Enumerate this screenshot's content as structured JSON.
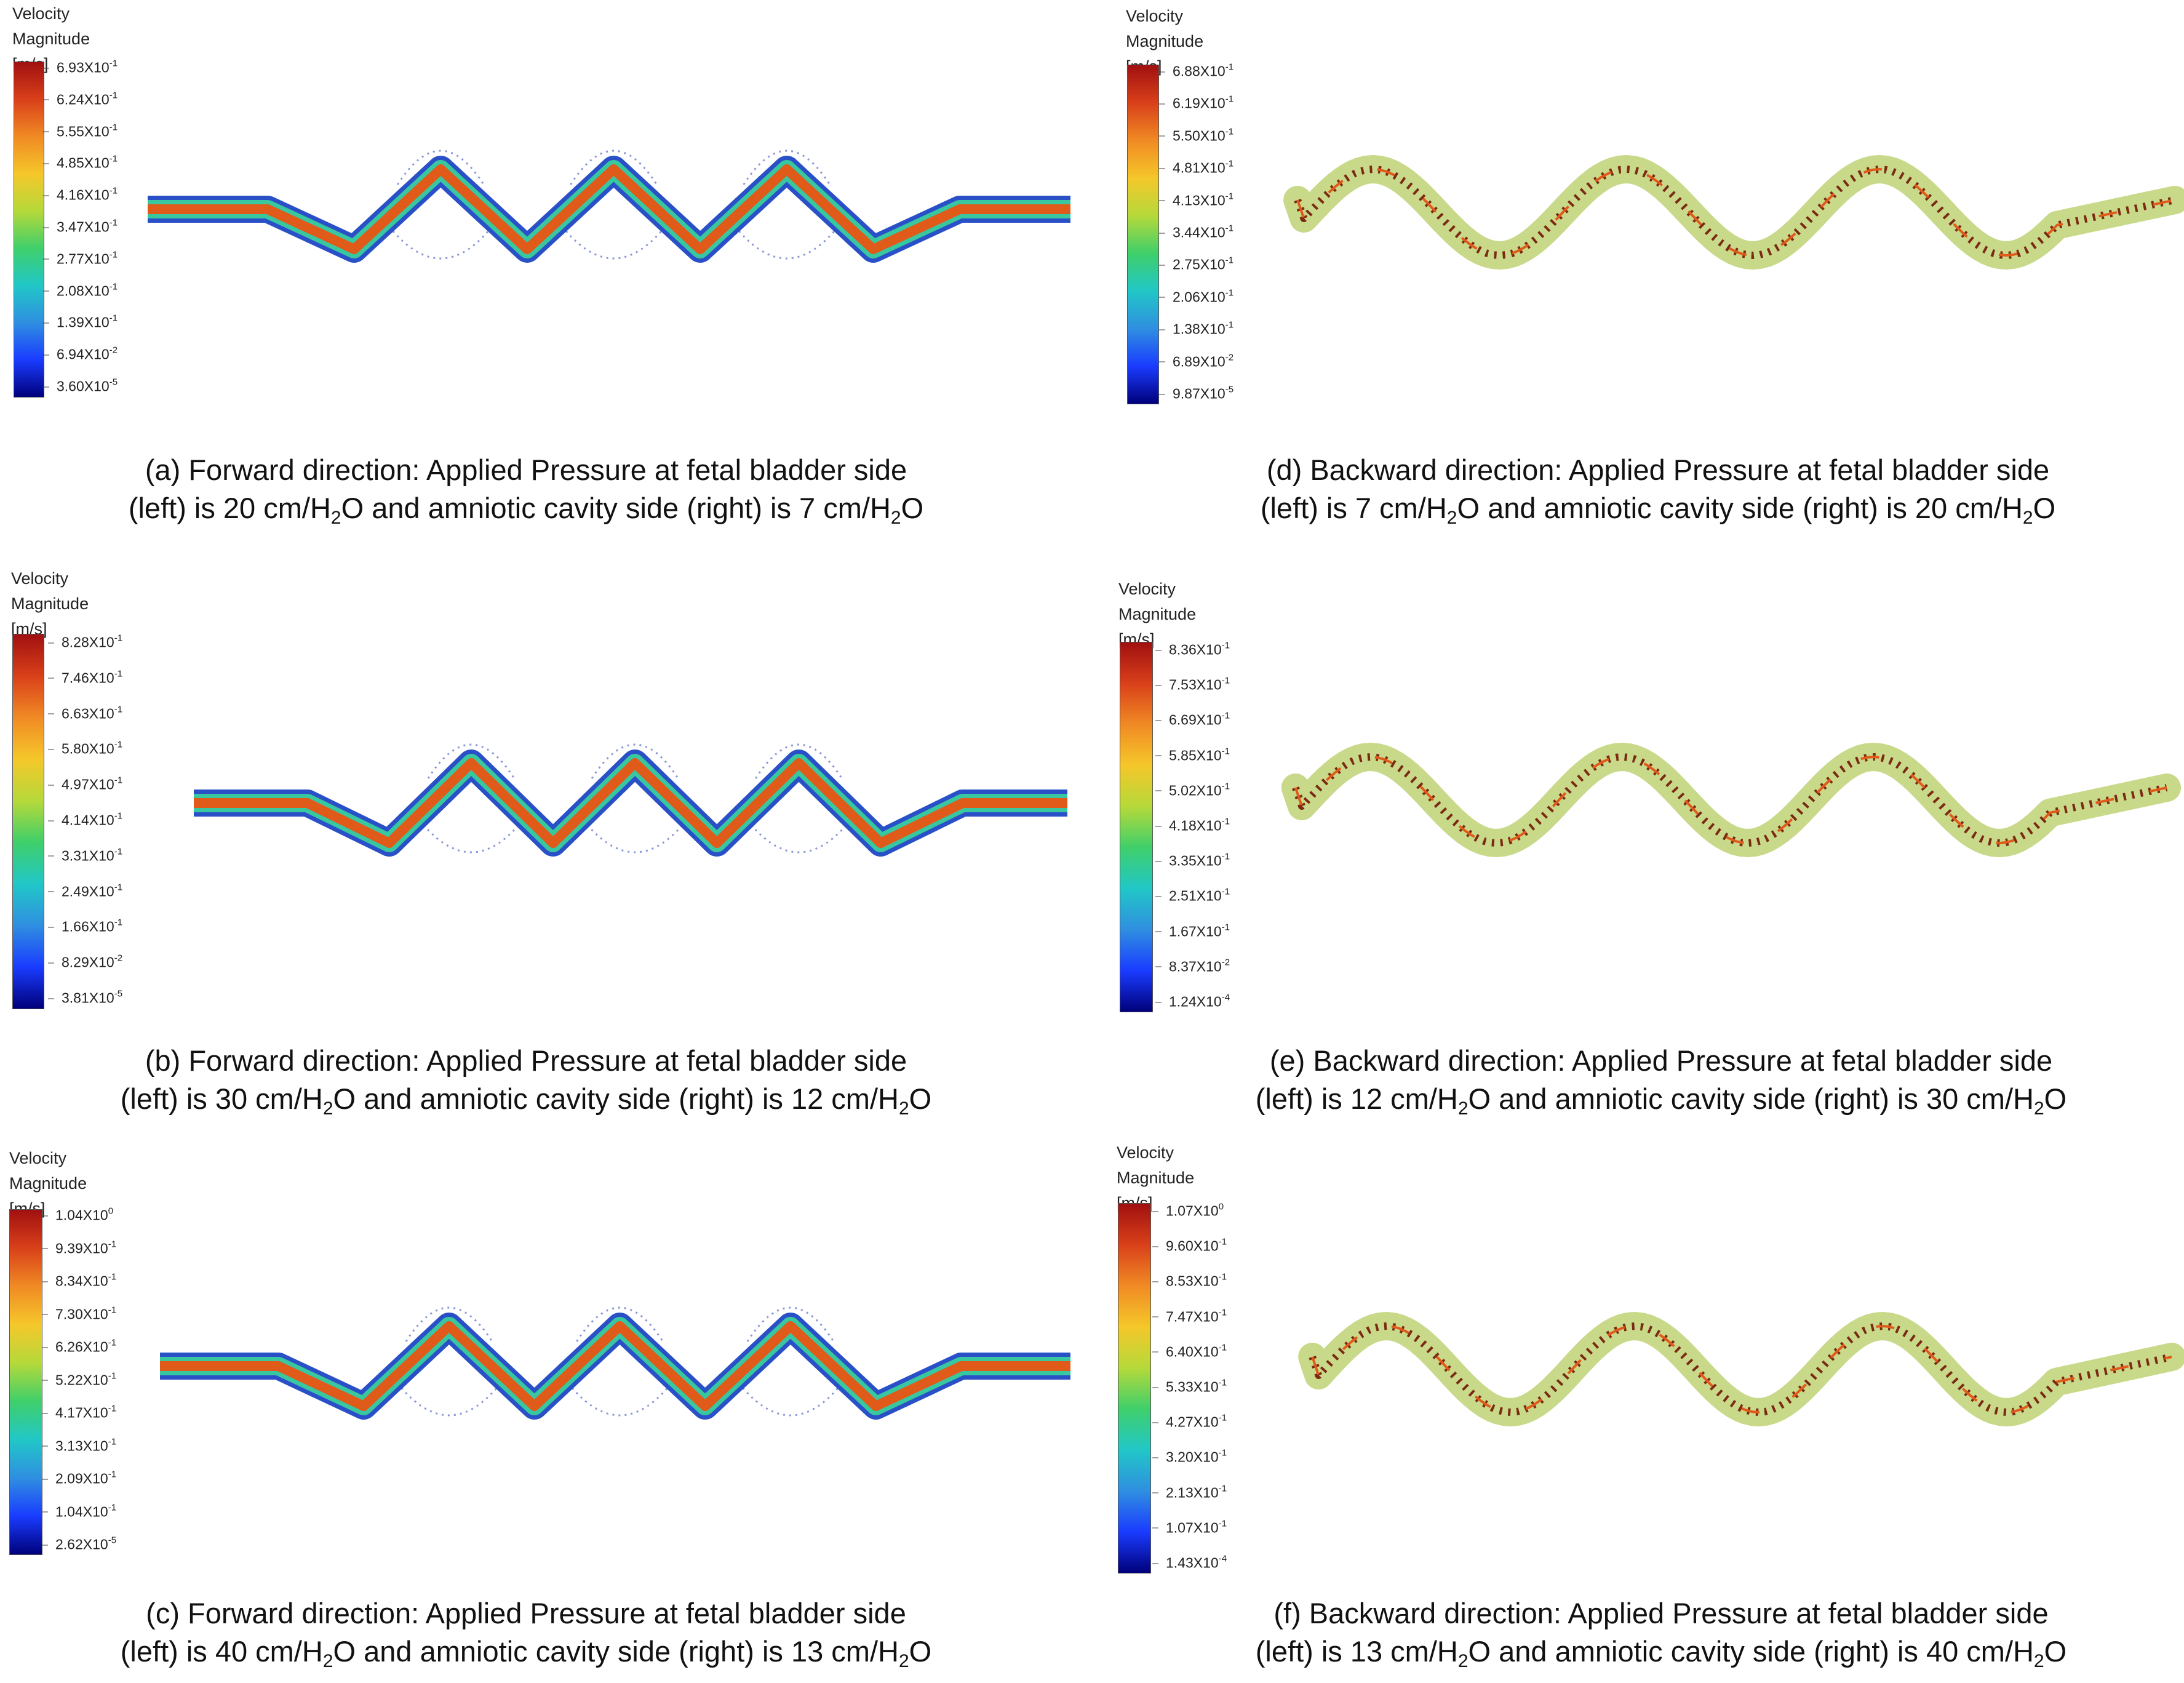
{
  "colors": {
    "jet": [
      "#00007a",
      "#1a3cff",
      "#2f8fe0",
      "#21c7c7",
      "#3fcf6a",
      "#b6d93a",
      "#f5c72a",
      "#f08a24",
      "#d9401a",
      "#a01010"
    ],
    "tube_edge": "#2a50c8",
    "tube_mid": "#39c7a0",
    "tube_core": "#e05a1a",
    "vector_light": "#c9d98a",
    "vector_arrow": "#7a2a12",
    "recirc": "#8a98d8"
  },
  "panels": [
    {
      "id": "a",
      "direction": "forward",
      "legend_title": [
        "Velocity",
        "Magnitude [m/s]"
      ],
      "ticks": [
        [
          "6.93X10",
          "-1"
        ],
        [
          "6.24X10",
          "-1"
        ],
        [
          "5.55X10",
          "-1"
        ],
        [
          "4.85X10",
          "-1"
        ],
        [
          "4.16X10",
          "-1"
        ],
        [
          "3.47X10",
          "-1"
        ],
        [
          "2.77X10",
          "-1"
        ],
        [
          "2.08X10",
          "-1"
        ],
        [
          "1.39X10",
          "-1"
        ],
        [
          "6.94X10",
          "-2"
        ],
        [
          "3.60X10",
          "-5"
        ]
      ],
      "caption_line1": "(a) Forward direction: Applied Pressure at fetal bladder side",
      "caption_line2": {
        "pre": "(left) is ",
        "p_left": "20",
        "mid": " and amniotic cavity side (right) is ",
        "p_right": "7",
        "unit_main": " cm/H",
        "unit_sub": "2",
        "unit_end": "O"
      }
    },
    {
      "id": "b",
      "direction": "forward",
      "legend_title": [
        "Velocity",
        "Magnitude [m/s]"
      ],
      "ticks": [
        [
          "8.28X10",
          "-1"
        ],
        [
          "7.46X10",
          "-1"
        ],
        [
          "6.63X10",
          "-1"
        ],
        [
          "5.80X10",
          "-1"
        ],
        [
          "4.97X10",
          "-1"
        ],
        [
          "4.14X10",
          "-1"
        ],
        [
          "3.31X10",
          "-1"
        ],
        [
          "2.49X10",
          "-1"
        ],
        [
          "1.66X10",
          "-1"
        ],
        [
          "8.29X10",
          "-2"
        ],
        [
          "3.81X10",
          "-5"
        ]
      ],
      "caption_line1": "(b) Forward direction: Applied Pressure at fetal bladder side",
      "caption_line2": {
        "pre": "(left) is ",
        "p_left": "30",
        "mid": " and amniotic cavity side (right) is ",
        "p_right": "12",
        "unit_main": " cm/H",
        "unit_sub": "2",
        "unit_end": "O"
      }
    },
    {
      "id": "c",
      "direction": "forward",
      "legend_title": [
        "Velocity",
        "Magnitude [m/s]"
      ],
      "ticks": [
        [
          "1.04X10",
          "0"
        ],
        [
          "9.39X10",
          "-1"
        ],
        [
          "8.34X10",
          "-1"
        ],
        [
          "7.30X10",
          "-1"
        ],
        [
          "6.26X10",
          "-1"
        ],
        [
          "5.22X10",
          "-1"
        ],
        [
          "4.17X10",
          "-1"
        ],
        [
          "3.13X10",
          "-1"
        ],
        [
          "2.09X10",
          "-1"
        ],
        [
          "1.04X10",
          "-1"
        ],
        [
          "2.62X10",
          "-5"
        ]
      ],
      "caption_line1": "(c) Forward direction: Applied Pressure at fetal bladder side",
      "caption_line2": {
        "pre": "(left) is ",
        "p_left": "40",
        "mid": " and amniotic cavity side (right) is ",
        "p_right": "13",
        "unit_main": " cm/H",
        "unit_sub": "2",
        "unit_end": "O"
      }
    },
    {
      "id": "d",
      "direction": "backward",
      "legend_title": [
        "Velocity",
        "Magnitude [m/s]"
      ],
      "ticks": [
        [
          "6.88X10",
          "-1"
        ],
        [
          "6.19X10",
          "-1"
        ],
        [
          "5.50X10",
          "-1"
        ],
        [
          "4.81X10",
          "-1"
        ],
        [
          "4.13X10",
          "-1"
        ],
        [
          "3.44X10",
          "-1"
        ],
        [
          "2.75X10",
          "-1"
        ],
        [
          "2.06X10",
          "-1"
        ],
        [
          "1.38X10",
          "-1"
        ],
        [
          "6.89X10",
          "-2"
        ],
        [
          "9.87X10",
          "-5"
        ]
      ],
      "caption_line1": "(d) Backward direction: Applied Pressure at fetal bladder side",
      "caption_line2": {
        "pre": "(left) is ",
        "p_left": "7",
        "mid": " and amniotic cavity side (right) is ",
        "p_right": "20",
        "unit_main": " cm/H",
        "unit_sub": "2",
        "unit_end": "O"
      }
    },
    {
      "id": "e",
      "direction": "backward",
      "legend_title": [
        "Velocity",
        "Magnitude [m/s]"
      ],
      "ticks": [
        [
          "8.36X10",
          "-1"
        ],
        [
          "7.53X10",
          "-1"
        ],
        [
          "6.69X10",
          "-1"
        ],
        [
          "5.85X10",
          "-1"
        ],
        [
          "5.02X10",
          "-1"
        ],
        [
          "4.18X10",
          "-1"
        ],
        [
          "3.35X10",
          "-1"
        ],
        [
          "2.51X10",
          "-1"
        ],
        [
          "1.67X10",
          "-1"
        ],
        [
          "8.37X10",
          "-2"
        ],
        [
          "1.24X10",
          "-4"
        ]
      ],
      "caption_line1": "(e) Backward direction: Applied Pressure at fetal bladder side",
      "caption_line2": {
        "pre": "(left) is ",
        "p_left": "12",
        "mid": " and amniotic cavity side (right) is ",
        "p_right": "30",
        "unit_main": " cm/H",
        "unit_sub": "2",
        "unit_end": "O"
      }
    },
    {
      "id": "f",
      "direction": "backward",
      "legend_title": [
        "Velocity",
        "Magnitude [m/s]"
      ],
      "ticks": [
        [
          "1.07X10",
          "0"
        ],
        [
          "9.60X10",
          "-1"
        ],
        [
          "8.53X10",
          "-1"
        ],
        [
          "7.47X10",
          "-1"
        ],
        [
          "6.40X10",
          "-1"
        ],
        [
          "5.33X10",
          "-1"
        ],
        [
          "4.27X10",
          "-1"
        ],
        [
          "3.20X10",
          "-1"
        ],
        [
          "2.13X10",
          "-1"
        ],
        [
          "1.07X10",
          "-1"
        ],
        [
          "1.43X10",
          "-4"
        ]
      ],
      "caption_line1": "(f) Backward direction: Applied Pressure at fetal bladder side",
      "caption_line2": {
        "pre": "(left) is ",
        "p_left": "13",
        "mid": " and amniotic cavity side (right) is ",
        "p_right": "40",
        "unit_main": " cm/H",
        "unit_sub": "2",
        "unit_end": "O"
      }
    }
  ]
}
